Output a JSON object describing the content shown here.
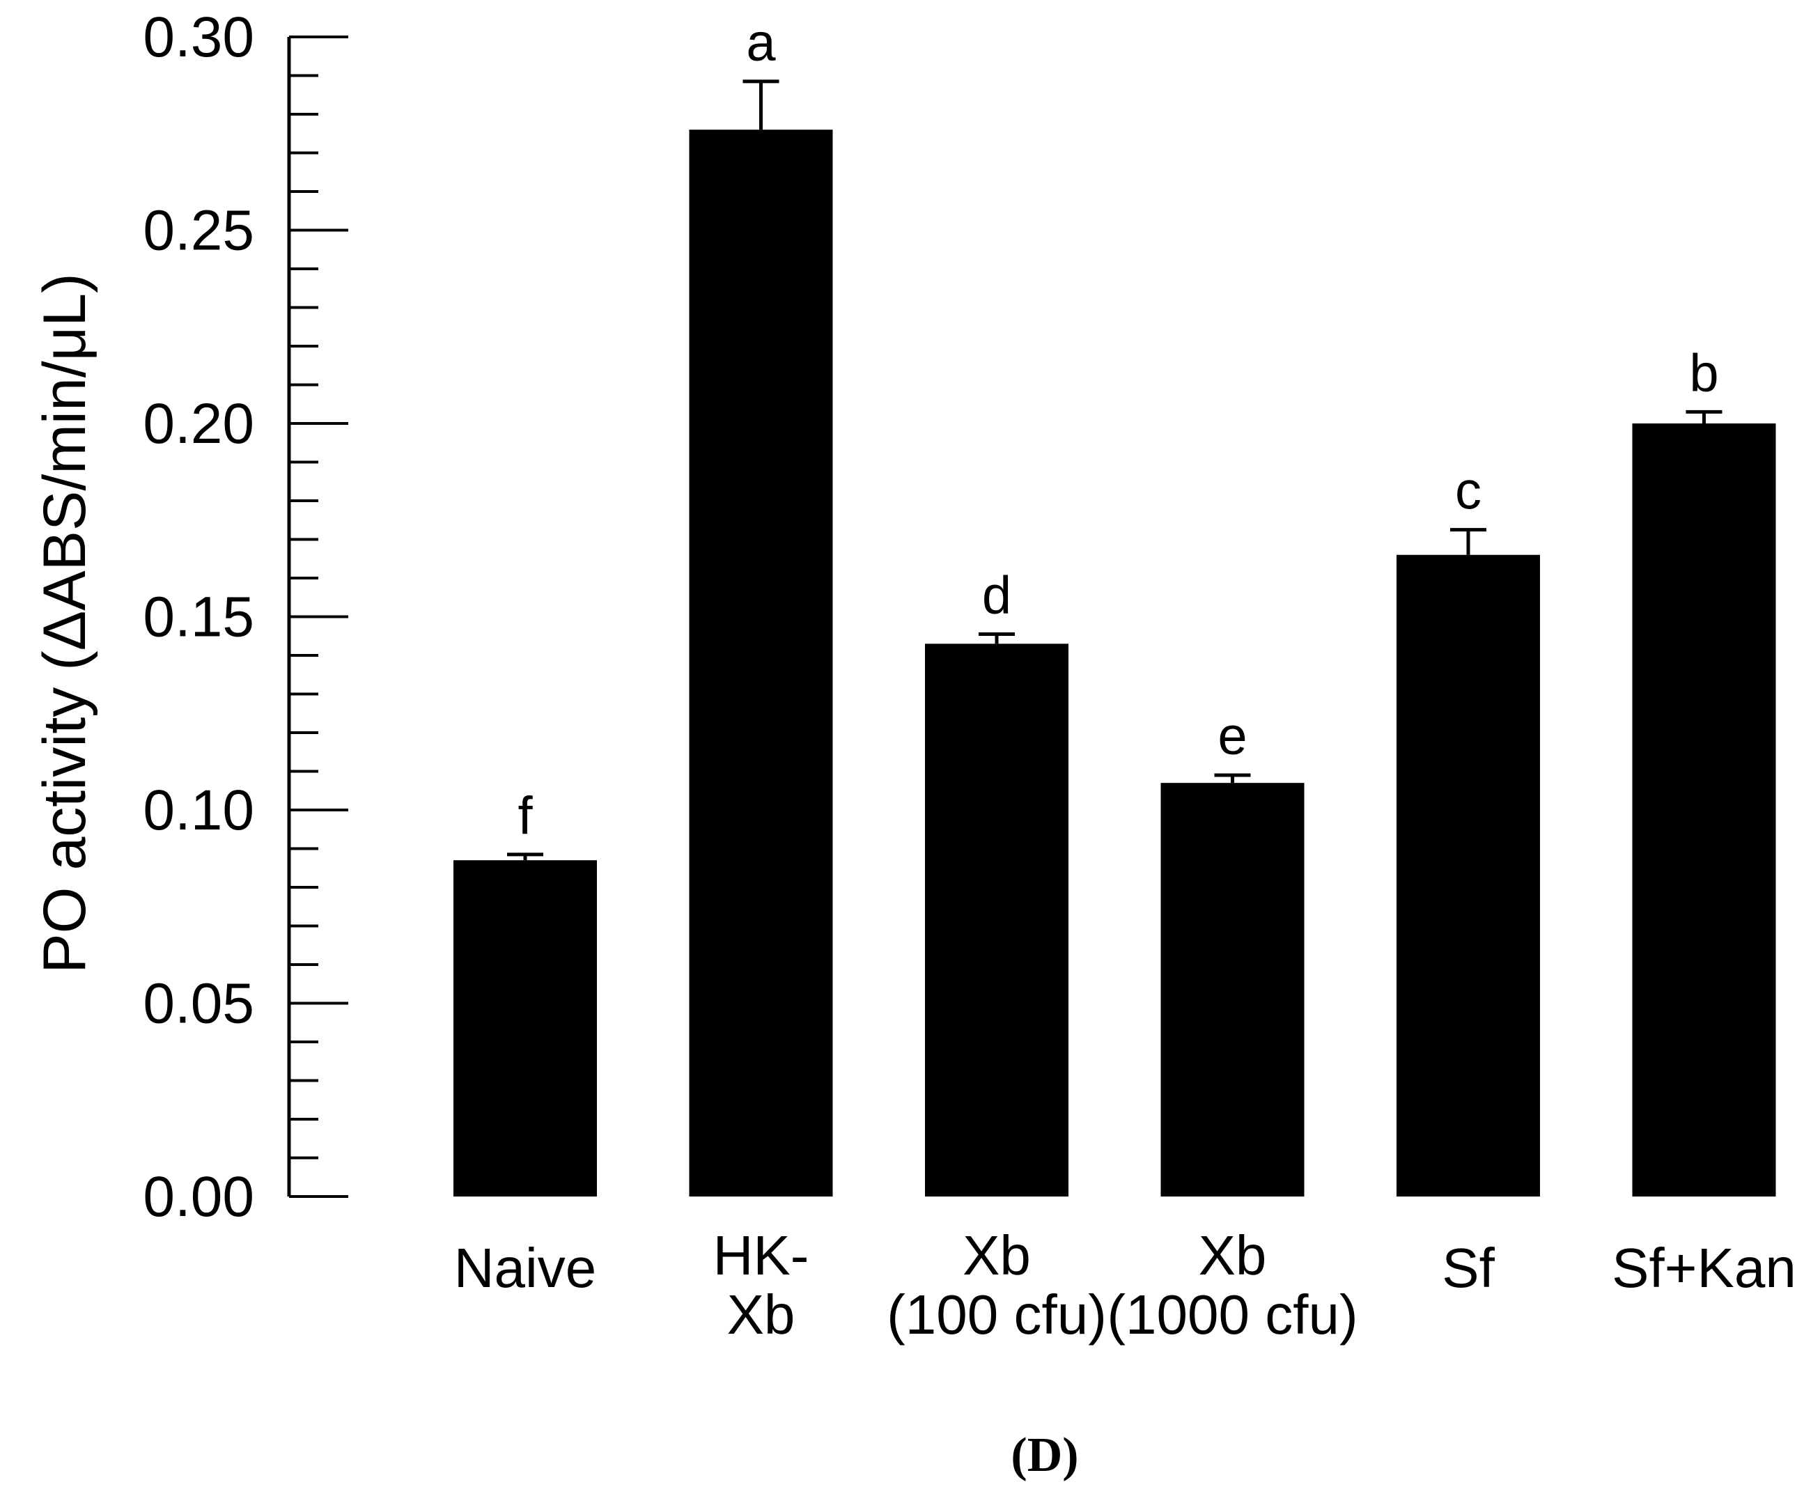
{
  "chart_data": {
    "type": "bar",
    "categories": [
      [
        "Naive"
      ],
      [
        "HK-",
        "Xb"
      ],
      [
        "Xb",
        "(100 cfu)"
      ],
      [
        "Xb",
        "(1000 cfu)"
      ],
      [
        "Sf"
      ],
      [
        "Sf+Kan"
      ]
    ],
    "values": [
      0.087,
      0.276,
      0.143,
      0.107,
      0.166,
      0.2
    ],
    "errors": [
      0.0015,
      0.0125,
      0.0025,
      0.002,
      0.0065,
      0.003
    ],
    "significance": [
      "f",
      "a",
      "d",
      "e",
      "c",
      "b"
    ],
    "ylabel": "PO activity (ΔABS/min/μL)",
    "xlabel": "",
    "ylim": [
      0,
      0.3
    ],
    "yticks": [
      "0.00",
      "0.05",
      "0.10",
      "0.15",
      "0.20",
      "0.25",
      "0.30"
    ],
    "ytick_values": [
      0,
      0.05,
      0.1,
      0.15,
      0.2,
      0.25,
      0.3
    ],
    "minor_tick_step": 0.01,
    "bar_color": "#000000",
    "grid": false,
    "legend": "none"
  },
  "panel_label": "(D)"
}
